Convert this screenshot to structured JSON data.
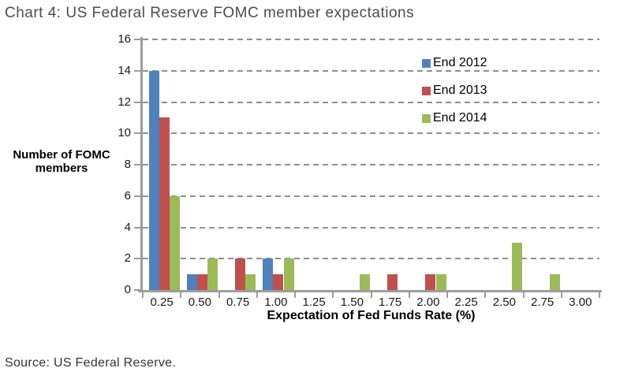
{
  "title": "Chart 4: US Federal Reserve FOMC member expectations",
  "source_note": "Source: US Federal Reserve.",
  "chart_data": {
    "type": "bar",
    "title": "Chart 4: US Federal Reserve FOMC member expectations",
    "xlabel": "Expectation of Fed Funds Rate (%)",
    "ylabel": "Number of FOMC members",
    "ylabel_lines": [
      "Number of FOMC",
      "members"
    ],
    "categories": [
      "0.25",
      "0.50",
      "0.75",
      "1.00",
      "1.25",
      "1.50",
      "1.75",
      "2.00",
      "2.25",
      "2.50",
      "2.75",
      "3.00"
    ],
    "series": [
      {
        "name": "End 2012",
        "color": "#4f81bd",
        "values": [
          14,
          1,
          0,
          2,
          0,
          0,
          0,
          0,
          0,
          0,
          0,
          0
        ]
      },
      {
        "name": "End 2013",
        "color": "#c0504d",
        "values": [
          11,
          1,
          2,
          1,
          0,
          0,
          1,
          1,
          0,
          0,
          0,
          0
        ]
      },
      {
        "name": "End 2014",
        "color": "#9bbb59",
        "values": [
          6,
          2,
          1,
          2,
          0,
          1,
          0,
          1,
          0,
          3,
          1,
          0
        ]
      }
    ],
    "ylim": [
      0,
      16
    ],
    "yticks": [
      0,
      2,
      4,
      6,
      8,
      10,
      12,
      14,
      16
    ],
    "grid": "horizontal-dashed",
    "legend_position": "inside-top-right",
    "gridline_color": "#8f8f8f",
    "axis_color": "#9d9d9d"
  }
}
